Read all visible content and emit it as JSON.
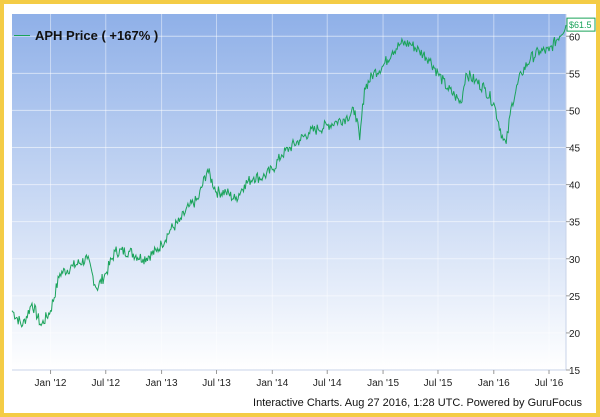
{
  "chart_data": {
    "type": "line",
    "title": "",
    "xlabel": "",
    "ylabel": "",
    "x_tick_labels": [
      "Jan '12",
      "Jul '12",
      "Jan '13",
      "Jul '13",
      "Jan '14",
      "Jul '14",
      "Jan '15",
      "Jul '15",
      "Jan '16",
      "Jul '16"
    ],
    "x_range": [
      "2011-08-27",
      "2016-08-26"
    ],
    "y_ticks": [
      15,
      20,
      25,
      30,
      35,
      40,
      45,
      50,
      55,
      60
    ],
    "ylim": [
      15,
      63
    ],
    "grid": true,
    "legend_position": "top-left",
    "last_value_label": "$61.5",
    "colors": {
      "line": "#1aa35a",
      "background_top": "#8fb0e8",
      "background_bottom": "#ffffff",
      "frame": "#f4cc45"
    },
    "series": [
      {
        "name": "APH Price ( +167% )",
        "x": [
          "2011-08-27",
          "2011-10-01",
          "2011-11-01",
          "2011-12-01",
          "2012-01-01",
          "2012-02-01",
          "2012-03-15",
          "2012-05-01",
          "2012-06-01",
          "2012-07-01",
          "2012-08-01",
          "2012-09-15",
          "2012-11-01",
          "2012-12-15",
          "2013-01-01",
          "2013-02-01",
          "2013-03-01",
          "2013-04-01",
          "2013-05-01",
          "2013-06-01",
          "2013-07-01",
          "2013-08-01",
          "2013-09-01",
          "2013-10-01",
          "2013-11-01",
          "2013-12-01",
          "2014-01-01",
          "2014-02-01",
          "2014-03-01",
          "2014-04-01",
          "2014-05-01",
          "2014-06-01",
          "2014-07-01",
          "2014-08-01",
          "2014-09-01",
          "2014-10-01",
          "2014-10-16",
          "2014-11-01",
          "2014-12-01",
          "2015-01-01",
          "2015-02-01",
          "2015-03-01",
          "2015-04-01",
          "2015-05-01",
          "2015-06-01",
          "2015-07-01",
          "2015-08-01",
          "2015-08-25",
          "2015-09-15",
          "2015-10-01",
          "2015-11-01",
          "2015-12-01",
          "2016-01-01",
          "2016-02-01",
          "2016-02-11",
          "2016-03-01",
          "2016-04-01",
          "2016-05-01",
          "2016-06-01",
          "2016-07-01",
          "2016-08-26"
        ],
        "values": [
          23,
          21,
          24,
          21,
          23,
          28,
          29,
          30,
          26,
          28,
          31,
          31,
          30,
          31,
          32,
          34,
          35,
          37,
          38,
          42,
          39,
          39,
          38,
          40,
          41,
          41,
          42,
          44,
          45,
          46,
          47,
          47.5,
          48,
          48.5,
          49,
          50,
          46,
          53,
          55,
          56,
          58,
          59,
          59,
          58,
          57,
          55,
          53,
          52,
          51,
          55,
          54,
          53,
          51,
          46,
          45.5,
          51,
          55,
          57,
          58,
          58,
          61.5
        ]
      }
    ]
  },
  "footer": "Interactive Charts. Aug 27 2016, 1:28 UTC. Powered by GuruFocus"
}
